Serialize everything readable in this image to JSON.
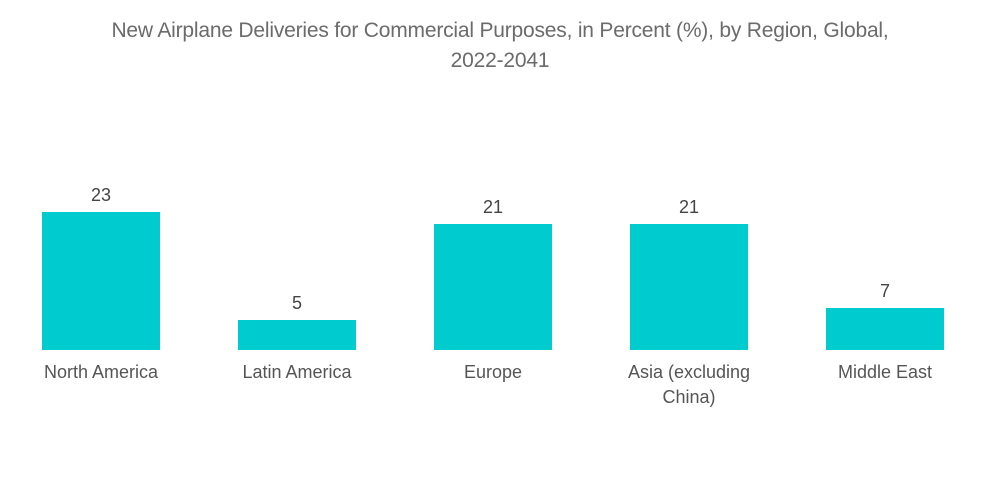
{
  "chart_data": {
    "type": "bar",
    "title": "New Airplane Deliveries for Commercial Purposes, in Percent (%), by Region, Global, 2022-2041",
    "title_lines": [
      "New Airplane Deliveries for Commercial Purposes, in Percent (%), by Region, Global,",
      "2022-2041"
    ],
    "categories": [
      "North America",
      "Latin America",
      "Europe",
      "Asia (excluding China)",
      "Middle East"
    ],
    "category_lines": [
      [
        "North America"
      ],
      [
        "Latin America"
      ],
      [
        "Europe"
      ],
      [
        "Asia (excluding",
        "China)"
      ],
      [
        "Middle East"
      ]
    ],
    "values": [
      23,
      5,
      21,
      21,
      7
    ],
    "data_labels": [
      "23",
      "5",
      "21",
      "21",
      "7"
    ],
    "xlabel": "",
    "ylabel": "",
    "ylim": [
      0,
      23
    ],
    "grid": false,
    "legend": "none",
    "bar_color": "#00cccf"
  }
}
